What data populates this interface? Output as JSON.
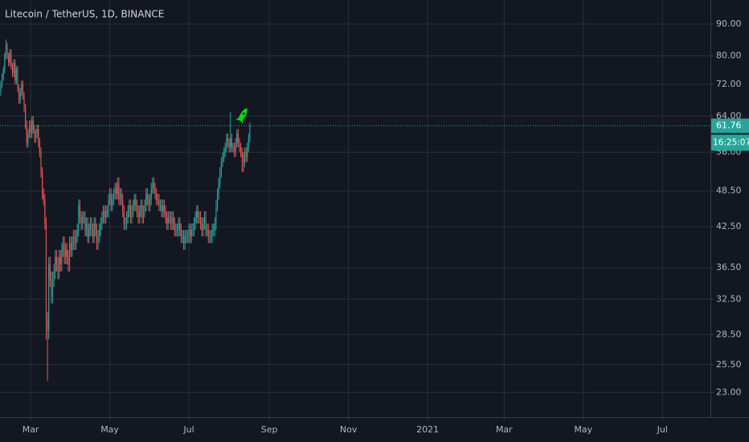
{
  "chart_data": {
    "type": "candlestick",
    "title": "Litecoin / TetherUS, 1D, BINANCE",
    "x": [
      37,
      38,
      39,
      40,
      41,
      42,
      43,
      44,
      45,
      46,
      47,
      48,
      49,
      50,
      51,
      52,
      53,
      54,
      55,
      56,
      57,
      58,
      59,
      60,
      61,
      62,
      63,
      64,
      65,
      66,
      67,
      68,
      69,
      70,
      71,
      72,
      73,
      74,
      75,
      76,
      77,
      78,
      79,
      80,
      81,
      82,
      83,
      84,
      85,
      86,
      87,
      88,
      89,
      90,
      91,
      92,
      93,
      94,
      95,
      96,
      97,
      98,
      99,
      100,
      101,
      102,
      103,
      104,
      105,
      106,
      107,
      108,
      109,
      110,
      111,
      112,
      113,
      114,
      115,
      116,
      117,
      118,
      119,
      120,
      121,
      122,
      123,
      124,
      125,
      126,
      127,
      128,
      129,
      130,
      131,
      132,
      133,
      134,
      135,
      136,
      137,
      138,
      139,
      140,
      141,
      142,
      143,
      144,
      145,
      146,
      147,
      148,
      149,
      150,
      151,
      152,
      153,
      154,
      155,
      156,
      157,
      158,
      159,
      160,
      161,
      162,
      163,
      164,
      165,
      166,
      167,
      168,
      169,
      170,
      171,
      172,
      173,
      174,
      175,
      176,
      177,
      178,
      179,
      180,
      181,
      182,
      183,
      184,
      185,
      186,
      187,
      188,
      189,
      190,
      191,
      192,
      193,
      194,
      195,
      196,
      197,
      198,
      199,
      200,
      201,
      202,
      203,
      204,
      205,
      206,
      207,
      208,
      209,
      210,
      211,
      212,
      213,
      214,
      215,
      216,
      217,
      218,
      219,
      220,
      221,
      222,
      223,
      224,
      225,
      226,
      227,
      228,
      229
    ],
    "open": [
      70,
      72,
      74,
      76,
      80,
      83,
      80,
      78,
      81,
      77,
      75,
      78,
      73,
      76,
      71,
      68,
      70,
      72,
      69,
      66,
      62,
      58,
      60,
      62,
      60,
      63,
      61,
      59,
      60,
      61,
      58,
      56,
      52,
      48,
      47,
      43,
      30,
      29,
      37,
      35,
      33,
      35,
      36,
      38,
      37,
      36,
      38,
      37,
      39,
      40,
      38,
      39,
      38,
      37,
      40,
      39,
      40,
      41,
      40,
      41,
      42,
      46,
      44,
      43,
      44,
      44,
      42,
      43,
      41,
      42,
      43,
      42,
      41,
      43,
      42,
      40,
      41,
      42,
      43,
      44,
      45,
      44,
      45,
      45,
      47,
      48,
      46,
      47,
      48,
      49,
      48,
      50,
      47,
      48,
      47,
      45,
      43,
      43,
      44,
      45,
      46,
      44,
      45,
      46,
      47,
      46,
      45,
      44,
      45,
      46,
      44,
      45,
      46,
      48,
      47,
      46,
      47,
      49,
      50,
      49,
      48,
      47,
      47,
      46,
      46,
      45,
      46,
      45,
      44,
      43,
      44,
      44,
      43,
      44,
      43,
      42,
      42,
      42,
      43,
      42,
      41,
      41,
      40,
      41,
      41,
      41,
      42,
      41,
      42,
      42,
      43,
      44,
      45,
      44,
      44,
      43,
      42,
      43,
      44,
      42,
      42,
      41,
      41,
      41,
      42,
      42,
      43,
      46,
      48,
      50,
      52,
      54,
      55,
      56,
      57,
      59,
      58,
      57,
      59,
      57,
      57,
      56,
      58,
      60,
      58,
      57,
      56,
      55,
      54,
      56,
      55,
      57,
      59
    ],
    "high": [
      73,
      75,
      77,
      81,
      85,
      84,
      81,
      82,
      82,
      78,
      79,
      79,
      77,
      77,
      72,
      71,
      73,
      73,
      70,
      67,
      63,
      61,
      63,
      63,
      64,
      64,
      62,
      61,
      62,
      62,
      59,
      57,
      53,
      49,
      48,
      44,
      31,
      38,
      38,
      36,
      36,
      37,
      39,
      39,
      38,
      39,
      39,
      40,
      41,
      41,
      40,
      40,
      39,
      41,
      41,
      41,
      42,
      42,
      42,
      43,
      47,
      47,
      45,
      45,
      45,
      45,
      44,
      44,
      43,
      44,
      44,
      43,
      44,
      44,
      43,
      42,
      43,
      44,
      45,
      46,
      46,
      46,
      46,
      48,
      49,
      49,
      48,
      49,
      50,
      50,
      51,
      51,
      49,
      49,
      48,
      46,
      44,
      45,
      46,
      47,
      47,
      46,
      47,
      48,
      48,
      47,
      46,
      46,
      47,
      47,
      46,
      47,
      49,
      49,
      48,
      48,
      50,
      51,
      51,
      50,
      49,
      48,
      48,
      47,
      47,
      47,
      47,
      46,
      45,
      45,
      45,
      45,
      45,
      45,
      44,
      43,
      43,
      44,
      44,
      43,
      42,
      42,
      42,
      42,
      42,
      43,
      43,
      43,
      43,
      44,
      45,
      46,
      46,
      45,
      45,
      44,
      44,
      45,
      45,
      43,
      43,
      42,
      42,
      43,
      43,
      44,
      47,
      49,
      51,
      53,
      55,
      56,
      57,
      58,
      60,
      60,
      59,
      65,
      60,
      58,
      58,
      59,
      61,
      61,
      59,
      58,
      57,
      56,
      57,
      57,
      58,
      60,
      62.5
    ],
    "low": [
      69,
      71,
      73,
      75,
      79,
      79,
      77,
      77,
      76,
      74,
      74,
      72,
      72,
      70,
      67,
      67,
      69,
      68,
      65,
      61,
      57,
      57,
      59,
      59,
      59,
      60,
      58,
      58,
      59,
      57,
      55,
      51,
      47,
      46,
      42,
      28,
      24,
      28,
      34,
      32,
      32,
      34,
      35,
      36,
      35,
      35,
      36,
      36,
      38,
      37,
      37,
      37,
      36,
      36,
      38,
      38,
      39,
      39,
      39,
      40,
      41,
      43,
      42,
      42,
      43,
      41,
      41,
      40,
      40,
      41,
      41,
      40,
      40,
      41,
      39,
      39,
      40,
      41,
      42,
      43,
      43,
      43,
      44,
      44,
      46,
      45,
      45,
      46,
      47,
      47,
      47,
      46,
      46,
      46,
      44,
      42,
      42,
      42,
      43,
      44,
      43,
      43,
      44,
      45,
      45,
      44,
      43,
      43,
      44,
      43,
      43,
      44,
      45,
      46,
      45,
      45,
      46,
      48,
      48,
      47,
      46,
      46,
      45,
      45,
      44,
      44,
      44,
      43,
      42,
      42,
      43,
      42,
      42,
      42,
      41,
      41,
      41,
      41,
      41,
      40,
      40,
      39,
      39,
      40,
      40,
      40,
      40,
      40,
      41,
      41,
      42,
      43,
      43,
      43,
      42,
      41,
      41,
      42,
      41,
      41,
      40,
      40,
      40,
      40,
      41,
      41,
      42,
      45,
      47,
      49,
      51,
      53,
      54,
      55,
      56,
      57,
      56,
      56,
      56,
      56,
      55,
      55,
      57,
      57,
      56,
      55,
      52,
      52,
      53,
      54,
      54,
      56,
      58
    ],
    "close": [
      72,
      74,
      76,
      80,
      83,
      80,
      78,
      81,
      77,
      75,
      78,
      73,
      76,
      71,
      68,
      70,
      72,
      69,
      66,
      62,
      58,
      60,
      62,
      60,
      63,
      61,
      59,
      60,
      61,
      58,
      56,
      52,
      48,
      47,
      43,
      30,
      29,
      37,
      35,
      33,
      35,
      36,
      38,
      37,
      36,
      38,
      37,
      39,
      40,
      38,
      39,
      38,
      37,
      40,
      39,
      40,
      41,
      40,
      41,
      42,
      46,
      44,
      43,
      44,
      44,
      42,
      43,
      41,
      42,
      43,
      42,
      41,
      43,
      42,
      40,
      41,
      42,
      43,
      44,
      45,
      44,
      45,
      45,
      47,
      48,
      46,
      47,
      48,
      49,
      48,
      50,
      47,
      48,
      47,
      45,
      43,
      43,
      44,
      45,
      46,
      44,
      45,
      46,
      47,
      46,
      45,
      44,
      45,
      46,
      44,
      45,
      46,
      48,
      47,
      46,
      47,
      49,
      50,
      49,
      48,
      47,
      47,
      46,
      46,
      45,
      46,
      45,
      44,
      43,
      44,
      44,
      43,
      44,
      43,
      42,
      42,
      42,
      43,
      42,
      41,
      41,
      40,
      41,
      41,
      41,
      42,
      41,
      42,
      42,
      43,
      44,
      45,
      44,
      44,
      43,
      42,
      43,
      44,
      42,
      42,
      41,
      41,
      41,
      42,
      42,
      43,
      46,
      48,
      50,
      52,
      54,
      55,
      56,
      57,
      59,
      58,
      57,
      59,
      57,
      57,
      56,
      58,
      60,
      58,
      57,
      56,
      55,
      54,
      56,
      55,
      57,
      59,
      61.76
    ],
    "xlim": [
      36.4,
      584
    ],
    "xticks": [
      {
        "value": 60,
        "label": "Mar"
      },
      {
        "value": 121,
        "label": "May"
      },
      {
        "value": 182,
        "label": "Jul"
      },
      {
        "value": 244,
        "label": "Sep"
      },
      {
        "value": 305,
        "label": "Nov"
      },
      {
        "value": 366,
        "label": "2021"
      },
      {
        "value": 425,
        "label": "Mar"
      },
      {
        "value": 486,
        "label": "May"
      },
      {
        "value": 547,
        "label": "Jul"
      }
    ],
    "ylim": [
      21.0,
      98.4
    ],
    "yticks": [
      {
        "value": 23,
        "label": "23.00"
      },
      {
        "value": 25.5,
        "label": "25.50"
      },
      {
        "value": 28.5,
        "label": "28.50"
      },
      {
        "value": 32.5,
        "label": "32.50"
      },
      {
        "value": 36.5,
        "label": "36.50"
      },
      {
        "value": 42.5,
        "label": "42.50"
      },
      {
        "value": 48.5,
        "label": "48.50"
      },
      {
        "value": 56,
        "label": "56.00"
      },
      {
        "value": 64,
        "label": "64.00"
      },
      {
        "value": 72,
        "label": "72.00"
      },
      {
        "value": 80,
        "label": "80.00"
      },
      {
        "value": 90,
        "label": "90.00"
      }
    ],
    "log_scale": true,
    "grid": true,
    "up_color": "#26a69a",
    "down_color": "#ef5350",
    "last_price": 61.76,
    "last_price_color": "#26a69a",
    "countdown": "16:25:07"
  }
}
